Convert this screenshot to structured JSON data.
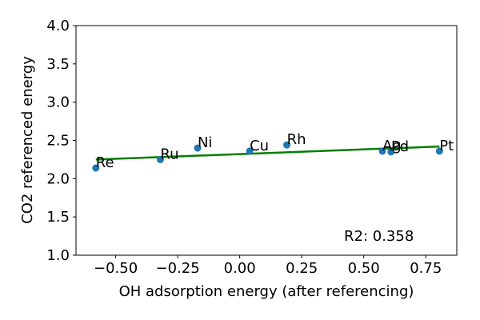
{
  "chart_data": {
    "type": "scatter",
    "xlabel": "OH adsorption energy (after referencing)",
    "ylabel": "CO2 referenced energy",
    "xlim": [
      -0.66,
      0.875
    ],
    "ylim": [
      1.0,
      4.0
    ],
    "xticks": [
      -0.5,
      -0.25,
      0.0,
      0.25,
      0.5,
      0.75
    ],
    "xtick_labels": [
      "−0.50",
      "−0.25",
      "0.00",
      "0.25",
      "0.50",
      "0.75"
    ],
    "yticks": [
      1.0,
      1.5,
      2.0,
      2.5,
      3.0,
      3.5,
      4.0
    ],
    "ytick_labels": [
      "1.0",
      "1.5",
      "2.0",
      "2.5",
      "3.0",
      "3.5",
      "4.0"
    ],
    "grid": false,
    "points": [
      {
        "label": "Re",
        "x": -0.58,
        "y": 2.14
      },
      {
        "label": "Ru",
        "x": -0.32,
        "y": 2.25
      },
      {
        "label": "Ni",
        "x": -0.17,
        "y": 2.4
      },
      {
        "label": "Cu",
        "x": 0.04,
        "y": 2.36
      },
      {
        "label": "Rh",
        "x": 0.19,
        "y": 2.44
      },
      {
        "label": "Ag",
        "x": 0.575,
        "y": 2.36
      },
      {
        "label": "Pd",
        "x": 0.61,
        "y": 2.35
      },
      {
        "label": "Pt",
        "x": 0.805,
        "y": 2.36
      }
    ],
    "fit_line": {
      "x": [
        -0.58,
        0.805
      ],
      "y": [
        2.25,
        2.42
      ],
      "color": "#008000"
    },
    "point_color": "#1f77b4",
    "annotation": "R2: 0.358"
  }
}
